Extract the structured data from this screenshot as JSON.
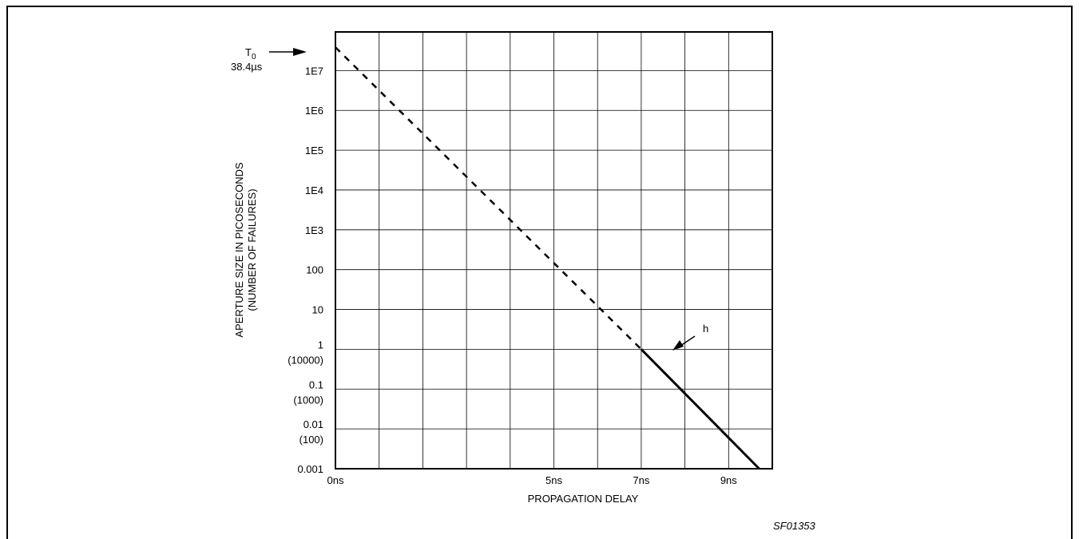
{
  "chart_data": {
    "type": "line",
    "xlabel": "PROPAGATION DELAY",
    "ylabel_line1": "APERTURE SIZE IN PICOSECONDS",
    "ylabel_line2": "(NUMBER OF FAILURES)",
    "xlim": [
      0,
      10
    ],
    "x_ticks": [
      {
        "value": 0,
        "label": "0ns"
      },
      {
        "value": 5,
        "label": "5ns"
      },
      {
        "value": 7,
        "label": "7ns"
      },
      {
        "value": 9,
        "label": "9ns"
      }
    ],
    "y_scale": "log",
    "y_ticks": [
      {
        "value": 0.001,
        "label": "0.001",
        "sublabel": ""
      },
      {
        "value": 0.01,
        "label": "0.01",
        "sublabel": "(100)"
      },
      {
        "value": 0.1,
        "label": "0.1",
        "sublabel": "(1000)"
      },
      {
        "value": 1,
        "label": "1",
        "sublabel": "(10000)"
      },
      {
        "value": 10,
        "label": "10",
        "sublabel": ""
      },
      {
        "value": 100,
        "label": "100",
        "sublabel": ""
      },
      {
        "value": 1000,
        "label": "1E3",
        "sublabel": ""
      },
      {
        "value": 10000,
        "label": "1E4",
        "sublabel": ""
      },
      {
        "value": 100000,
        "label": "1E5",
        "sublabel": ""
      },
      {
        "value": 1000000,
        "label": "1E6",
        "sublabel": ""
      },
      {
        "value": 10000000,
        "label": "1E7",
        "sublabel": ""
      }
    ],
    "grid": true,
    "series": [
      {
        "style": "dashed",
        "x": [
          0,
          7
        ],
        "y": [
          38400000,
          1
        ]
      },
      {
        "style": "solid",
        "x": [
          7,
          9.7
        ],
        "y": [
          1,
          0.001
        ]
      }
    ],
    "annotations": {
      "t0_label": "T",
      "t0_subscript": "0",
      "t0_value": "38.4µs",
      "h_label": "h"
    },
    "figure_id": "SF01353"
  }
}
